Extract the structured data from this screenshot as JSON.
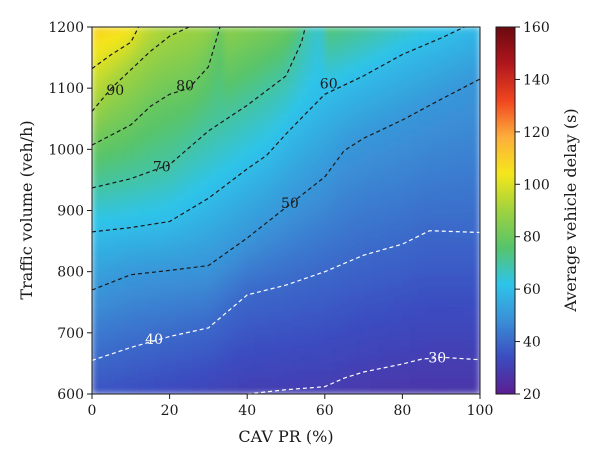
{
  "chart_data": {
    "type": "heatmap",
    "title": "",
    "xlabel": "CAV PR (%)",
    "ylabel": "Traffic volume (veh/h)",
    "colorbar_label": "Average vehicle delay (s)",
    "xlim": [
      0,
      100
    ],
    "ylim": [
      600,
      1200
    ],
    "x_ticks": [
      0,
      20,
      40,
      60,
      80,
      100
    ],
    "y_ticks": [
      600,
      700,
      800,
      900,
      1000,
      1100,
      1200
    ],
    "colorbar_range": [
      20,
      160
    ],
    "colorbar_ticks": [
      20,
      40,
      60,
      80,
      100,
      120,
      140,
      160
    ],
    "colormap": [
      "#5b1e91",
      "#3b4cc0",
      "#3a8fd6",
      "#2ec4ea",
      "#57c46a",
      "#9fd23f",
      "#f5e61b",
      "#fdae3c",
      "#f0451f",
      "#b0161c",
      "#6b0a0f"
    ],
    "grid": false,
    "contours": [
      {
        "level": 30,
        "label": "30",
        "label_at": [
          89,
          660
        ],
        "line_color": "#ffffff",
        "points": [
          [
            40,
            600
          ],
          [
            50,
            607
          ],
          [
            60,
            612
          ],
          [
            65,
            626
          ],
          [
            70,
            636
          ],
          [
            80,
            649
          ],
          [
            85,
            657
          ],
          [
            90,
            660
          ],
          [
            100,
            656
          ]
        ]
      },
      {
        "level": 40,
        "label": "40",
        "label_at": [
          16,
          690
        ],
        "line_color": "#ffffff",
        "points": [
          [
            0,
            655
          ],
          [
            10,
            676
          ],
          [
            20,
            694
          ],
          [
            30,
            708
          ],
          [
            40,
            762
          ],
          [
            50,
            778
          ],
          [
            60,
            800
          ],
          [
            70,
            827
          ],
          [
            80,
            845
          ],
          [
            87,
            867
          ],
          [
            100,
            864
          ]
        ]
      },
      {
        "level": 50,
        "label": "50",
        "label_at": [
          51,
          912
        ],
        "line_color": "#1a1a1a",
        "points": [
          [
            0,
            770
          ],
          [
            10,
            795
          ],
          [
            20,
            802
          ],
          [
            30,
            810
          ],
          [
            40,
            855
          ],
          [
            50,
            905
          ],
          [
            60,
            955
          ],
          [
            65,
            998
          ],
          [
            70,
            1018
          ],
          [
            80,
            1048
          ],
          [
            90,
            1082
          ],
          [
            100,
            1115
          ]
        ]
      },
      {
        "level": 60,
        "label": "60",
        "label_at": [
          61,
          1108
        ],
        "line_color": "#1a1a1a",
        "points": [
          [
            0,
            865
          ],
          [
            10,
            872
          ],
          [
            20,
            882
          ],
          [
            30,
            920
          ],
          [
            40,
            968
          ],
          [
            45,
            990
          ],
          [
            50,
            1025
          ],
          [
            55,
            1058
          ],
          [
            60,
            1090
          ],
          [
            70,
            1120
          ],
          [
            80,
            1155
          ],
          [
            90,
            1182
          ],
          [
            96,
            1200
          ]
        ]
      },
      {
        "level": 70,
        "label": "70",
        "label_at": [
          18,
          972
        ],
        "line_color": "#1a1a1a",
        "points": [
          [
            0,
            937
          ],
          [
            10,
            952
          ],
          [
            20,
            975
          ],
          [
            30,
            1030
          ],
          [
            40,
            1072
          ],
          [
            50,
            1120
          ],
          [
            54,
            1175
          ],
          [
            55,
            1200
          ]
        ]
      },
      {
        "level": 80,
        "label": "80",
        "label_at": [
          24,
          1104
        ],
        "line_color": "#1a1a1a",
        "points": [
          [
            0,
            1007
          ],
          [
            10,
            1040
          ],
          [
            15,
            1070
          ],
          [
            20,
            1090
          ],
          [
            25,
            1100
          ],
          [
            30,
            1135
          ],
          [
            33,
            1200
          ]
        ]
      },
      {
        "level": 90,
        "label": "90",
        "label_at": [
          6,
          1097
        ],
        "line_color": "#1a1a1a",
        "points": [
          [
            0,
            1062
          ],
          [
            5,
            1100
          ],
          [
            10,
            1130
          ],
          [
            15,
            1160
          ],
          [
            20,
            1185
          ],
          [
            25,
            1200
          ]
        ]
      },
      {
        "level": 100,
        "label": "",
        "label_at": null,
        "line_color": "#1a1a1a",
        "points": [
          [
            0,
            1132
          ],
          [
            5,
            1155
          ],
          [
            10,
            1175
          ],
          [
            12,
            1200
          ]
        ]
      }
    ]
  }
}
